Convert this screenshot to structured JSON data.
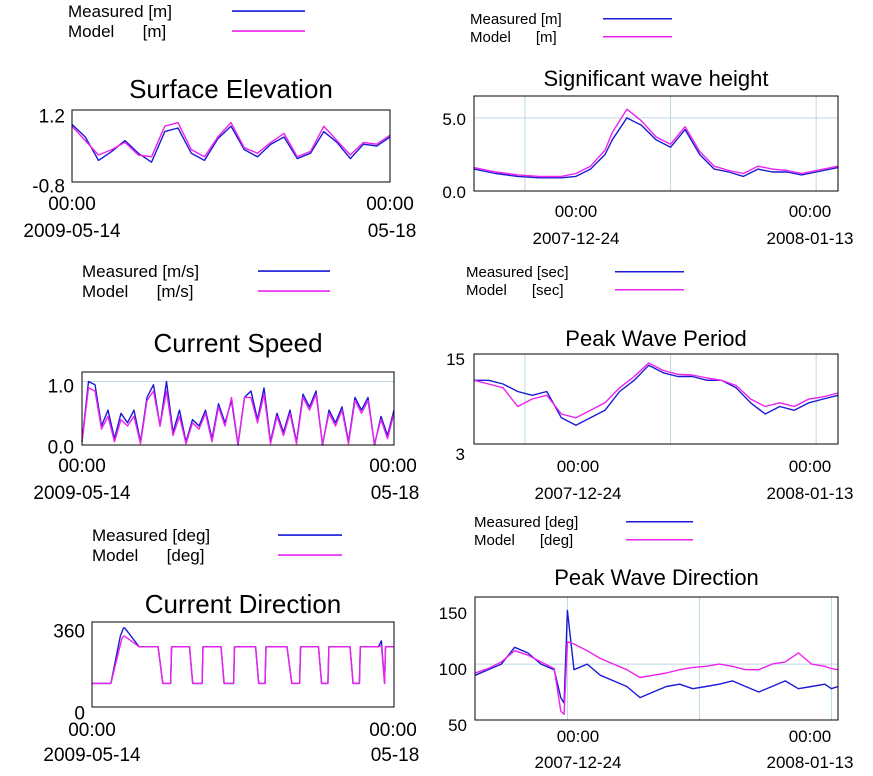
{
  "colors": {
    "measured": "#1a1ad6",
    "model": "#ee22ee",
    "grid": "#bcd8e4",
    "frame": "#000000"
  },
  "chart_data": [
    {
      "type": "line",
      "title": "Surface Elevation",
      "legend": [
        "Measured [m]",
        "Model      [m]"
      ],
      "ylim": [
        -0.8,
        1.2
      ],
      "yticks": [
        "1.2",
        "-0.8"
      ],
      "xticks": [
        {
          "time": "00:00",
          "date": "2009-05-14"
        },
        {
          "time": "00:00",
          "date": "05-18"
        }
      ],
      "series": [
        {
          "name": "Measured [m]",
          "x": [
            0,
            4,
            8,
            12,
            16,
            20,
            24,
            28,
            32,
            36,
            40,
            44,
            48,
            52,
            56,
            60,
            64,
            68,
            72,
            76,
            80,
            84,
            88,
            92,
            96
          ],
          "y": [
            0.8,
            0.45,
            -0.2,
            0.05,
            0.35,
            0.0,
            -0.25,
            0.6,
            0.7,
            0.0,
            -0.2,
            0.4,
            0.75,
            0.1,
            -0.1,
            0.25,
            0.45,
            -0.15,
            0.0,
            0.6,
            0.3,
            -0.15,
            0.25,
            0.2,
            0.45
          ]
        },
        {
          "name": "Model      [m]",
          "x": [
            0,
            4,
            8,
            12,
            16,
            20,
            24,
            28,
            32,
            36,
            40,
            44,
            48,
            52,
            56,
            60,
            64,
            68,
            72,
            76,
            80,
            84,
            88,
            92,
            96
          ],
          "y": [
            0.75,
            0.35,
            -0.05,
            0.1,
            0.3,
            -0.05,
            -0.1,
            0.75,
            0.85,
            0.1,
            -0.1,
            0.45,
            0.85,
            0.15,
            0.0,
            0.3,
            0.55,
            -0.1,
            0.05,
            0.75,
            0.35,
            -0.05,
            0.3,
            0.25,
            0.5
          ]
        }
      ]
    },
    {
      "type": "line",
      "title": "Current Speed",
      "legend": [
        "Measured [m/s]",
        "Model      [m/s]"
      ],
      "ylim": [
        0,
        1.15
      ],
      "yticks": [
        "1.0",
        "0.0"
      ],
      "xticks": [
        {
          "time": "00:00",
          "date": "2009-05-14"
        },
        {
          "time": "00:00",
          "date": "05-18"
        }
      ],
      "series": [
        {
          "name": "Measured [m/s]",
          "x": [
            0,
            2,
            4,
            6,
            8,
            10,
            12,
            14,
            16,
            18,
            20,
            22,
            24,
            26,
            28,
            30,
            32,
            34,
            36,
            38,
            40,
            42,
            44,
            46,
            48,
            50,
            52,
            54,
            56,
            58,
            60,
            62,
            64,
            66,
            68,
            70,
            72,
            74,
            76,
            78,
            80,
            82,
            84,
            86,
            88,
            90,
            92,
            94,
            96
          ],
          "y": [
            0.05,
            1.0,
            0.95,
            0.3,
            0.55,
            0.1,
            0.5,
            0.35,
            0.55,
            0.05,
            0.75,
            0.95,
            0.3,
            1.0,
            0.2,
            0.55,
            0.05,
            0.4,
            0.3,
            0.55,
            0.1,
            0.65,
            0.35,
            0.7,
            0.0,
            0.75,
            0.85,
            0.4,
            0.9,
            0.05,
            0.5,
            0.2,
            0.55,
            0.05,
            0.8,
            0.6,
            0.85,
            0.0,
            0.55,
            0.35,
            0.6,
            0.05,
            0.75,
            0.55,
            0.75,
            0.0,
            0.45,
            0.15,
            0.55
          ]
        },
        {
          "name": "Model      [m/s]",
          "x": [
            0,
            2,
            4,
            6,
            8,
            10,
            12,
            14,
            16,
            18,
            20,
            22,
            24,
            26,
            28,
            30,
            32,
            34,
            36,
            38,
            40,
            42,
            44,
            46,
            48,
            50,
            52,
            54,
            56,
            58,
            60,
            62,
            64,
            66,
            68,
            70,
            72,
            74,
            76,
            78,
            80,
            82,
            84,
            86,
            88,
            90,
            92,
            94,
            96
          ],
          "y": [
            0.05,
            0.9,
            0.85,
            0.25,
            0.45,
            0.05,
            0.4,
            0.3,
            0.45,
            0.02,
            0.7,
            0.85,
            0.3,
            0.85,
            0.15,
            0.45,
            0.02,
            0.35,
            0.25,
            0.5,
            0.05,
            0.6,
            0.3,
            0.75,
            0.02,
            0.75,
            0.75,
            0.35,
            0.8,
            0.02,
            0.45,
            0.15,
            0.5,
            0.02,
            0.75,
            0.55,
            0.8,
            0.02,
            0.5,
            0.3,
            0.55,
            0.02,
            0.7,
            0.5,
            0.7,
            0.02,
            0.4,
            0.1,
            0.5
          ]
        }
      ]
    },
    {
      "type": "line",
      "title": "Current Direction",
      "legend": [
        "Measured [deg]",
        "Model      [deg]"
      ],
      "ylim": [
        0,
        360
      ],
      "yticks": [
        "360",
        "0"
      ],
      "xticks": [
        {
          "time": "00:00",
          "date": "2009-05-14"
        },
        {
          "time": "00:00",
          "date": "05-18"
        }
      ],
      "series": [
        {
          "name": "Measured [deg]",
          "x": [
            0,
            1,
            2,
            5.5,
            6,
            9,
            10,
            10.4,
            15,
            15.3,
            21,
            22.5,
            25,
            25.3,
            31,
            32,
            35,
            35.3,
            41,
            42,
            45,
            45.3,
            52,
            53,
            55,
            55.3,
            62,
            63.5,
            66,
            66.3,
            72,
            73,
            75,
            75.3,
            82,
            83,
            85,
            85.3,
            91,
            92,
            93,
            93.3,
            96
          ],
          "y": [
            100,
            100,
            100,
            100,
            100,
            300,
            335,
            335,
            255,
            255,
            255,
            100,
            100,
            255,
            255,
            100,
            100,
            255,
            255,
            100,
            100,
            255,
            255,
            100,
            100,
            255,
            255,
            100,
            100,
            255,
            255,
            100,
            100,
            255,
            255,
            100,
            100,
            255,
            255,
            280,
            100,
            255,
            255
          ]
        },
        {
          "name": "Model      [deg]",
          "x": [
            0,
            1,
            2,
            5.5,
            6,
            9.5,
            10,
            10.4,
            15,
            15.3,
            21,
            22.5,
            25,
            25.3,
            31,
            32,
            35,
            35.3,
            41,
            42,
            45,
            45.3,
            52,
            53,
            55,
            55.3,
            62,
            63.5,
            66,
            66.3,
            72,
            73,
            75,
            75.3,
            82,
            83,
            85,
            85.3,
            91,
            92,
            93,
            93.3,
            96
          ],
          "y": [
            100,
            100,
            100,
            100,
            100,
            290,
            300,
            300,
            255,
            255,
            255,
            100,
            100,
            255,
            255,
            100,
            100,
            255,
            255,
            100,
            100,
            255,
            255,
            100,
            100,
            255,
            255,
            100,
            100,
            255,
            255,
            100,
            100,
            255,
            255,
            100,
            100,
            255,
            255,
            260,
            100,
            255,
            255
          ]
        }
      ]
    },
    {
      "type": "line",
      "title": "Significant wave height",
      "legend": [
        "Measured [m]",
        "Model      [m]"
      ],
      "ylim": [
        0,
        6.5
      ],
      "yticks": [
        "5.0",
        "0.0"
      ],
      "xticks": [
        {
          "time": "00:00",
          "date": "2007-12-24"
        },
        {
          "time": "00:00",
          "date": "2008-01-13"
        }
      ],
      "series": [
        {
          "name": "Measured [m]",
          "x": [
            -7,
            -4,
            -1,
            2,
            5,
            7,
            9,
            11,
            12,
            14,
            16,
            18,
            20,
            22,
            24,
            26,
            28,
            30,
            32,
            34,
            36,
            38,
            40,
            43
          ],
          "y": [
            1.5,
            1.2,
            1.0,
            0.9,
            0.9,
            1.0,
            1.5,
            2.5,
            3.5,
            5.0,
            4.5,
            3.5,
            3.0,
            4.2,
            2.5,
            1.5,
            1.3,
            1.0,
            1.5,
            1.3,
            1.3,
            1.1,
            1.3,
            1.6
          ]
        },
        {
          "name": "Model      [m]",
          "x": [
            -7,
            -4,
            -1,
            2,
            5,
            7,
            9,
            11,
            12,
            14,
            16,
            18,
            20,
            22,
            24,
            26,
            28,
            30,
            32,
            34,
            36,
            38,
            40,
            43
          ],
          "y": [
            1.6,
            1.3,
            1.1,
            1.0,
            1.0,
            1.2,
            1.7,
            2.8,
            4.0,
            5.6,
            4.8,
            3.7,
            3.2,
            4.4,
            2.7,
            1.7,
            1.4,
            1.2,
            1.7,
            1.5,
            1.4,
            1.2,
            1.4,
            1.7
          ]
        }
      ]
    },
    {
      "type": "line",
      "title": "Peak Wave Period",
      "legend": [
        "Measured [sec]",
        "Model      [sec]"
      ],
      "ylim": [
        3,
        15
      ],
      "yticks": [
        "15",
        "3"
      ],
      "xticks": [
        {
          "time": "00:00",
          "date": "2007-12-24"
        },
        {
          "time": "00:00",
          "date": "2008-01-13"
        }
      ],
      "series": [
        {
          "name": "Measured [sec]",
          "x": [
            -7,
            -5,
            -3,
            -1,
            1,
            3,
            5,
            7,
            9,
            11,
            13,
            15,
            17,
            19,
            21,
            23,
            25,
            27,
            29,
            31,
            33,
            35,
            37,
            39,
            41,
            43
          ],
          "y": [
            11.5,
            11.5,
            11.0,
            10.0,
            9.5,
            10.0,
            6.5,
            5.5,
            6.5,
            7.5,
            10.0,
            11.5,
            13.5,
            12.5,
            12.0,
            12.0,
            11.5,
            11.5,
            10.5,
            8.5,
            7.0,
            8.0,
            7.5,
            8.5,
            9.0,
            9.5
          ]
        },
        {
          "name": "Model      [sec]",
          "x": [
            -7,
            -5,
            -3,
            -1,
            1,
            3,
            5,
            7,
            9,
            11,
            13,
            15,
            17,
            19,
            21,
            23,
            25,
            27,
            29,
            31,
            33,
            35,
            37,
            39,
            41,
            43
          ],
          "y": [
            11.5,
            11.0,
            10.5,
            8.0,
            9.0,
            9.5,
            7.0,
            6.5,
            7.5,
            8.5,
            10.5,
            12.0,
            13.8,
            12.8,
            12.3,
            12.2,
            11.8,
            11.5,
            10.8,
            9.0,
            8.0,
            8.5,
            8.0,
            9.0,
            9.3,
            9.8
          ]
        }
      ]
    },
    {
      "type": "line",
      "title": "Peak Wave Direction",
      "legend": [
        "Measured [deg]",
        "Model      [deg]"
      ],
      "ylim": [
        50,
        160
      ],
      "yticks": [
        "150",
        "100",
        "50"
      ],
      "xticks": [
        {
          "time": "00:00",
          "date": "2007-12-24"
        },
        {
          "time": "00:00",
          "date": "2008-01-13"
        }
      ],
      "series": [
        {
          "name": "Measured [deg]",
          "x": [
            -14,
            -12,
            -10,
            -8,
            -6,
            -4,
            -2,
            -1,
            -0.5,
            0,
            1,
            3,
            5,
            7,
            9,
            11,
            13,
            15,
            17,
            19,
            21,
            23,
            25,
            27,
            29,
            31,
            33,
            35,
            37,
            39,
            40,
            41
          ],
          "y": [
            90,
            95,
            100,
            115,
            110,
            100,
            95,
            70,
            65,
            148,
            95,
            100,
            90,
            85,
            80,
            70,
            75,
            80,
            82,
            78,
            80,
            82,
            85,
            80,
            75,
            80,
            85,
            78,
            80,
            82,
            78,
            80
          ]
        },
        {
          "name": "Model      [deg]",
          "x": [
            -14,
            -12,
            -10,
            -8,
            -6,
            -4,
            -2,
            -1,
            -0.5,
            0,
            1,
            3,
            5,
            7,
            9,
            11,
            13,
            15,
            17,
            19,
            21,
            23,
            25,
            27,
            29,
            31,
            33,
            35,
            37,
            39,
            40,
            41
          ],
          "y": [
            92,
            96,
            102,
            112,
            108,
            102,
            96,
            58,
            55,
            120,
            118,
            112,
            105,
            100,
            95,
            88,
            90,
            92,
            95,
            97,
            98,
            100,
            98,
            95,
            95,
            100,
            102,
            110,
            100,
            98,
            96,
            95
          ]
        }
      ]
    }
  ]
}
